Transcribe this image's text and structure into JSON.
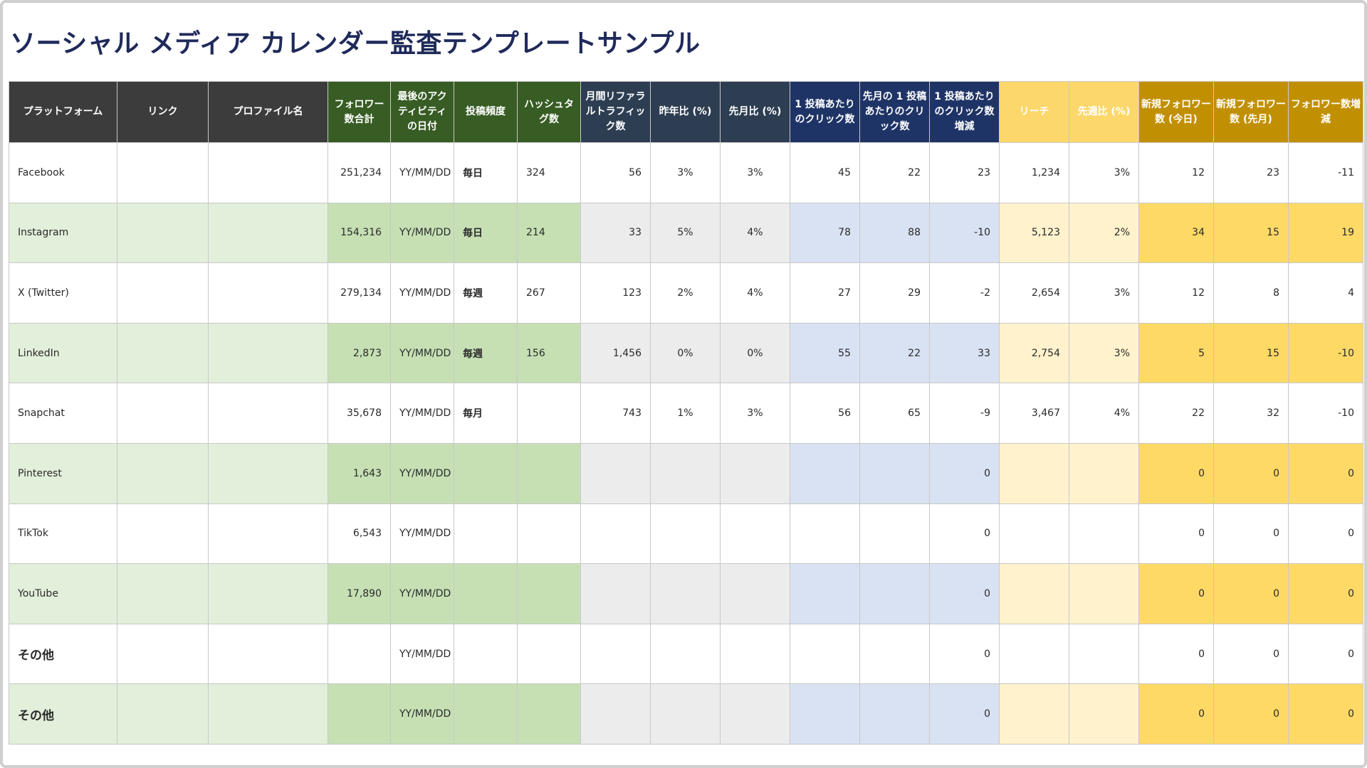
{
  "title": "ソーシャル メディア カレンダー監査テンプレートサンプル",
  "headers": [
    "プラットフォーム",
    "リンク",
    "プロファイル名",
    "フォロワー数合計",
    "最後のアクティビティの日付",
    "投稿頻度",
    "ハッシュタグ数",
    "月間リファラルトラフィック数",
    "昨年比 (%)",
    "先月比 (%)",
    "1 投稿あたりのクリック数",
    "先月の 1 投稿あたりのクリック数",
    "1 投稿あたりのクリック数増減",
    "リーチ",
    "先週比 (%)",
    "新規フォロワー数 (今日)",
    "新規フォロワー数 (先月)",
    "フォロワー数増減"
  ],
  "colors": {
    "header_dark": "#3c3c3c",
    "header_green": "#375c24",
    "header_slate": "#2d3e52",
    "header_navy": "#1f3466",
    "header_yellow": "#fcd76b",
    "header_gold": "#c19002",
    "title": "#1f2a5a",
    "platform_text": "#3d6b25"
  },
  "rows": [
    [
      "Facebook",
      "",
      "",
      "251,234",
      "YY/MM/DD",
      "毎日",
      "324",
      "56",
      "3%",
      "3%",
      "45",
      "22",
      "23",
      "1,234",
      "3%",
      "12",
      "23",
      "-11"
    ],
    [
      "Instagram",
      "",
      "",
      "154,316",
      "YY/MM/DD",
      "毎日",
      "214",
      "33",
      "5%",
      "4%",
      "78",
      "88",
      "-10",
      "5,123",
      "2%",
      "34",
      "15",
      "19"
    ],
    [
      "X (Twitter)",
      "",
      "",
      "279,134",
      "YY/MM/DD",
      "毎週",
      "267",
      "123",
      "2%",
      "4%",
      "27",
      "29",
      "-2",
      "2,654",
      "3%",
      "12",
      "8",
      "4"
    ],
    [
      "LinkedIn",
      "",
      "",
      "2,873",
      "YY/MM/DD",
      "毎週",
      "156",
      "1,456",
      "0%",
      "0%",
      "55",
      "22",
      "33",
      "2,754",
      "3%",
      "5",
      "15",
      "-10"
    ],
    [
      "Snapchat",
      "",
      "",
      "35,678",
      "YY/MM/DD",
      "毎月",
      "",
      "743",
      "1%",
      "3%",
      "56",
      "65",
      "-9",
      "3,467",
      "4%",
      "22",
      "32",
      "-10"
    ],
    [
      "Pinterest",
      "",
      "",
      "1,643",
      "YY/MM/DD",
      "",
      "",
      "",
      "",
      "",
      "",
      "",
      "0",
      "",
      "",
      "0",
      "0",
      "0"
    ],
    [
      "TikTok",
      "",
      "",
      "6,543",
      "YY/MM/DD",
      "",
      "",
      "",
      "",
      "",
      "",
      "",
      "0",
      "",
      "",
      "0",
      "0",
      "0"
    ],
    [
      "YouTube",
      "",
      "",
      "17,890",
      "YY/MM/DD",
      "",
      "",
      "",
      "",
      "",
      "",
      "",
      "0",
      "",
      "",
      "0",
      "0",
      "0"
    ],
    [
      "その他",
      "",
      "",
      "",
      "YY/MM/DD",
      "",
      "",
      "",
      "",
      "",
      "",
      "",
      "0",
      "",
      "",
      "0",
      "0",
      "0"
    ],
    [
      "その他",
      "",
      "",
      "",
      "YY/MM/DD",
      "",
      "",
      "",
      "",
      "",
      "",
      "",
      "0",
      "",
      "",
      "0",
      "0",
      "0"
    ]
  ]
}
